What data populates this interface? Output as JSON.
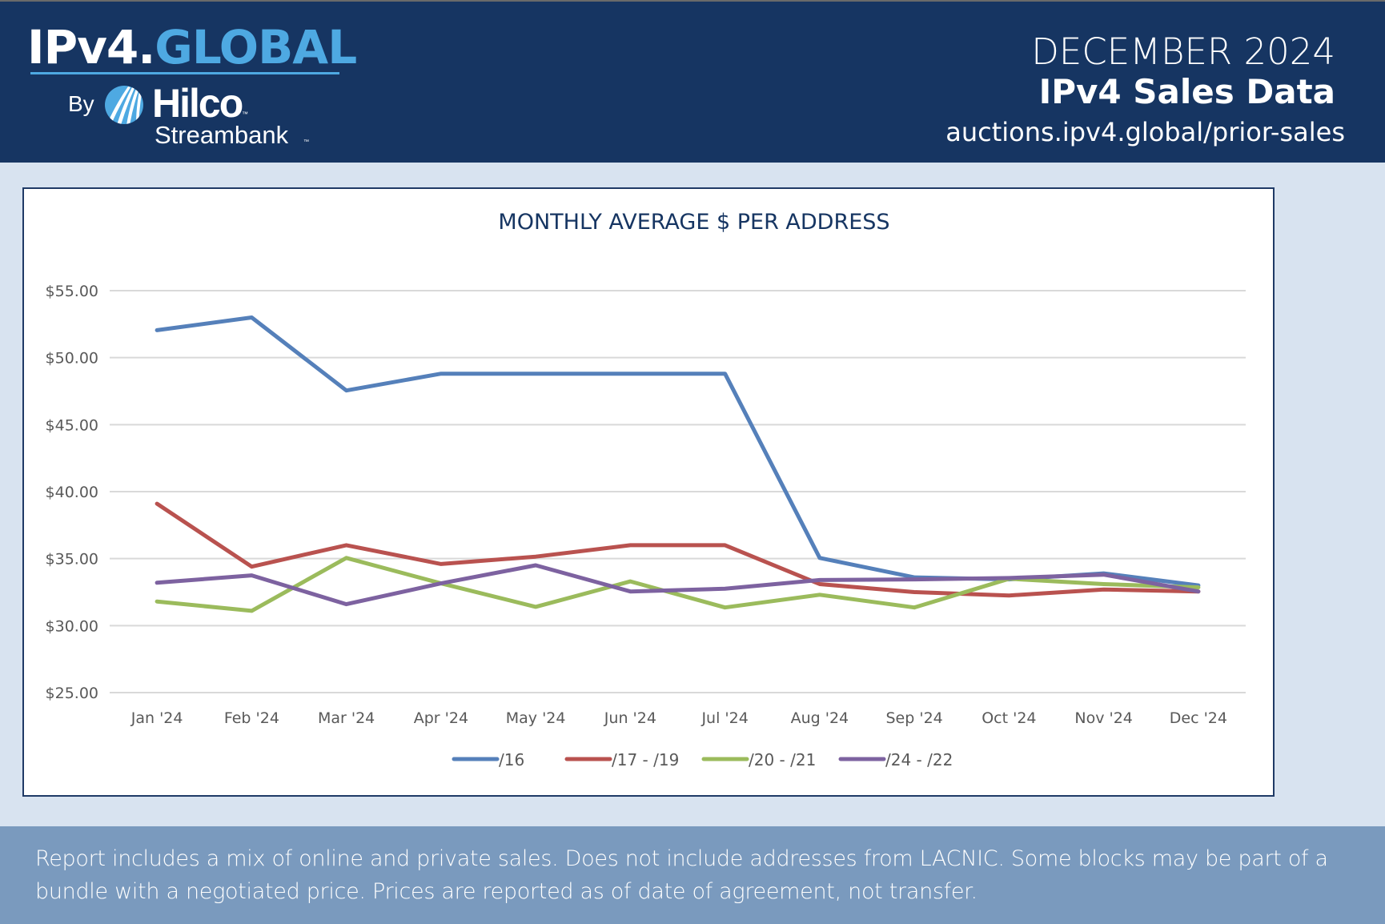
{
  "header": {
    "logo_part1": "IPv4.",
    "logo_part2": "GLOBAL",
    "by_label": "By",
    "partner_name": "Hilco",
    "partner_sub": "Streambank",
    "tm": "™",
    "month": "DECEMBER 2024",
    "title": "IPv4 Sales Data",
    "url": "auctions.ipv4.global/prior-sales"
  },
  "colors": {
    "header_bg": "#163562",
    "accent_blue": "#4ea9e2",
    "page_bg": "#d8e3f0",
    "footer_bg": "#7a9abe"
  },
  "footer": {
    "note": "Report includes a mix of online and private sales. Does not include addresses from LACNIC. Some blocks may be part of a bundle with a negotiated price. Prices are reported as of date of agreement, not transfer."
  },
  "chart_data": {
    "type": "line",
    "title": "MONTHLY AVERAGE $ PER ADDRESS",
    "xlabel": "",
    "ylabel": "",
    "categories": [
      "Jan '24",
      "Feb '24",
      "Mar '24",
      "Apr '24",
      "May '24",
      "Jun '24",
      "Jul '24",
      "Aug '24",
      "Sep '24",
      "Oct '24",
      "Nov '24",
      "Dec '24"
    ],
    "ylim": [
      25,
      55
    ],
    "yticks": [
      25,
      30,
      35,
      40,
      45,
      50,
      55
    ],
    "ytick_labels": [
      "$25.00",
      "$30.00",
      "$35.00",
      "$40.00",
      "$45.00",
      "$50.00",
      "$55.00"
    ],
    "grid": true,
    "legend_position": "bottom",
    "series": [
      {
        "name": "/16",
        "color": "#5580ba",
        "values": [
          52.05,
          53.0,
          47.55,
          48.8,
          48.8,
          48.8,
          48.8,
          35.05,
          33.6,
          33.45,
          33.9,
          33.0
        ]
      },
      {
        "name": "/17 - /19",
        "color": "#b9524f",
        "values": [
          39.1,
          34.4,
          36.0,
          34.6,
          35.15,
          36.0,
          36.0,
          33.1,
          32.5,
          32.25,
          32.7,
          32.55
        ]
      },
      {
        "name": "/20 - /21",
        "color": "#9bbb5c",
        "values": [
          31.8,
          31.1,
          35.05,
          33.15,
          31.4,
          33.3,
          31.35,
          32.3,
          31.35,
          33.5,
          33.1,
          32.85
        ]
      },
      {
        "name": "/24 - /22",
        "color": "#7d62a0",
        "values": [
          33.2,
          33.75,
          31.6,
          33.15,
          34.5,
          32.55,
          32.75,
          33.4,
          33.45,
          33.55,
          33.8,
          32.55
        ]
      }
    ]
  }
}
